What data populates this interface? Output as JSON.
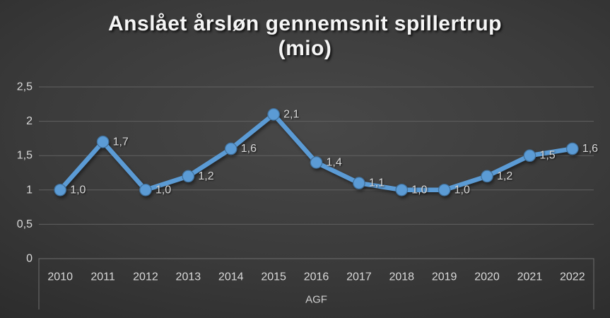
{
  "title": "Anslået årsløn gennemsnit spillertrup (mio)",
  "chart_data": {
    "type": "line",
    "title": "Anslået årsløn gennemsnit spillertrup (mio)",
    "xlabel": "AGF",
    "ylabel": "",
    "categories": [
      "2010",
      "2011",
      "2012",
      "2013",
      "2014",
      "2015",
      "2016",
      "2017",
      "2018",
      "2019",
      "2020",
      "2021",
      "2022"
    ],
    "series": [
      {
        "values": [
          1.0,
          1.7,
          1.0,
          1.2,
          1.6,
          2.1,
          1.4,
          1.1,
          1.0,
          1.0,
          1.2,
          1.5,
          1.6
        ],
        "data_labels": [
          "1,0",
          "1,7",
          "1,0",
          "1,2",
          "1,6",
          "2,1",
          "1,4",
          "1,1",
          "1,0",
          "1,0",
          "1,2",
          "1,5",
          "1,6"
        ]
      }
    ],
    "ylim": [
      0,
      2.5
    ],
    "y_ticks": [
      {
        "value": 0,
        "label": "0"
      },
      {
        "value": 0.5,
        "label": "0,5"
      },
      {
        "value": 1,
        "label": "1"
      },
      {
        "value": 1.5,
        "label": "1,5"
      },
      {
        "value": 2,
        "label": "2"
      },
      {
        "value": 2.5,
        "label": "2,5"
      }
    ],
    "grid": true,
    "legend": "none",
    "colors": {
      "line": "#5b9bd5",
      "marker_fill": "#5b9bd5",
      "marker_border": "#41719c",
      "grid_line": "#616161",
      "axis_line": "#6e6e6e",
      "tick_text": "#d9d9d9",
      "data_label_text": "#d9d9d9",
      "title_text": "#f5f5f5"
    }
  }
}
